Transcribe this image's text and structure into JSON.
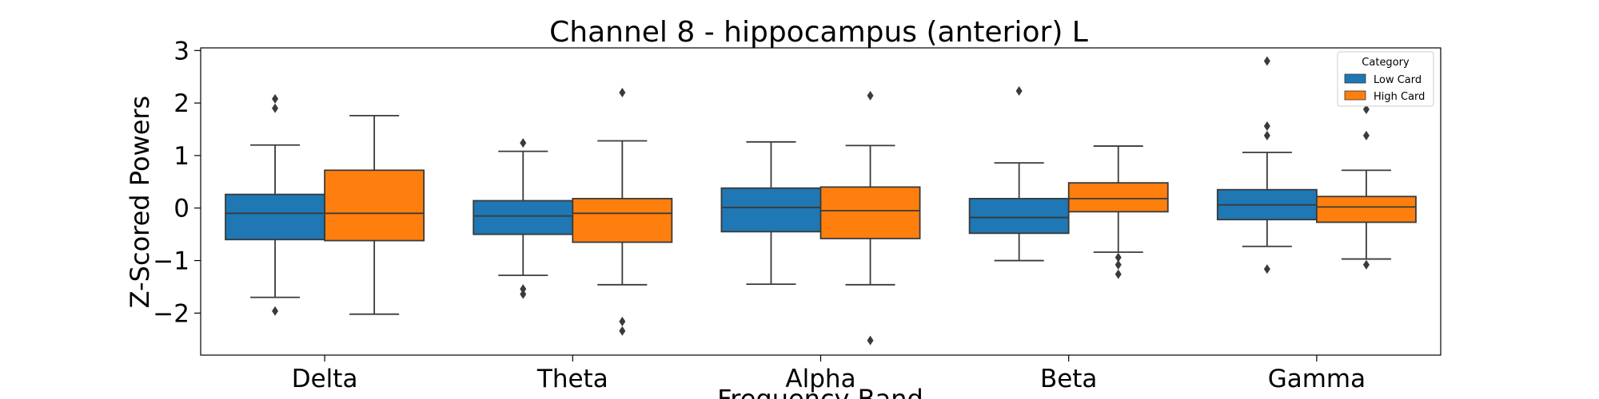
{
  "chart_data": {
    "type": "box",
    "title": "Channel 8 - hippocampus (anterior) L",
    "xlabel": "Frequency Band",
    "ylabel": "Z-Scored Powers",
    "categories": [
      "Delta",
      "Theta",
      "Alpha",
      "Beta",
      "Gamma"
    ],
    "ylim": [
      -2.8,
      3.05
    ],
    "yticks": [
      -2,
      -1,
      0,
      1,
      2,
      3
    ],
    "ytick_labels": [
      "−2",
      "−1",
      "0",
      "1",
      "2",
      "3"
    ],
    "grid": false,
    "legend": {
      "title": "Category",
      "placement": "top-right"
    },
    "series": [
      {
        "name": "Low Card",
        "color": "#1f77b4",
        "boxes": [
          {
            "category": "Delta",
            "whisker_low": -1.7,
            "q1": -0.6,
            "median": -0.1,
            "q3": 0.26,
            "whisker_high": 1.2,
            "outliers": [
              2.08,
              1.9,
              -1.96
            ]
          },
          {
            "category": "Theta",
            "whisker_low": -1.28,
            "q1": -0.5,
            "median": -0.15,
            "q3": 0.14,
            "whisker_high": 1.08,
            "outliers": [
              1.24,
              -1.54,
              -1.64
            ]
          },
          {
            "category": "Alpha",
            "whisker_low": -1.45,
            "q1": -0.45,
            "median": 0.01,
            "q3": 0.38,
            "whisker_high": 1.26,
            "outliers": []
          },
          {
            "category": "Beta",
            "whisker_low": -1.0,
            "q1": -0.48,
            "median": -0.18,
            "q3": 0.18,
            "whisker_high": 0.86,
            "outliers": [
              2.23
            ]
          },
          {
            "category": "Gamma",
            "whisker_low": -0.73,
            "q1": -0.22,
            "median": 0.06,
            "q3": 0.35,
            "whisker_high": 1.06,
            "outliers": [
              2.8,
              1.56,
              1.38,
              -1.16
            ]
          }
        ]
      },
      {
        "name": "High Card",
        "color": "#ff7f0e",
        "boxes": [
          {
            "category": "Delta",
            "whisker_low": -2.02,
            "q1": -0.62,
            "median": -0.1,
            "q3": 0.72,
            "whisker_high": 1.76,
            "outliers": []
          },
          {
            "category": "Theta",
            "whisker_low": -1.46,
            "q1": -0.65,
            "median": -0.1,
            "q3": 0.18,
            "whisker_high": 1.28,
            "outliers": [
              2.2,
              -2.16,
              -2.34
            ]
          },
          {
            "category": "Alpha",
            "whisker_low": -1.46,
            "q1": -0.58,
            "median": -0.05,
            "q3": 0.4,
            "whisker_high": 1.19,
            "outliers": [
              2.14,
              -2.52
            ]
          },
          {
            "category": "Beta",
            "whisker_low": -0.84,
            "q1": -0.07,
            "median": 0.18,
            "q3": 0.48,
            "whisker_high": 1.18,
            "outliers": [
              -0.94,
              -1.08,
              -1.26
            ]
          },
          {
            "category": "Gamma",
            "whisker_low": -0.97,
            "q1": -0.27,
            "median": 0.02,
            "q3": 0.22,
            "whisker_high": 0.72,
            "outliers": [
              1.88,
              1.38,
              -1.08
            ]
          }
        ]
      }
    ]
  }
}
